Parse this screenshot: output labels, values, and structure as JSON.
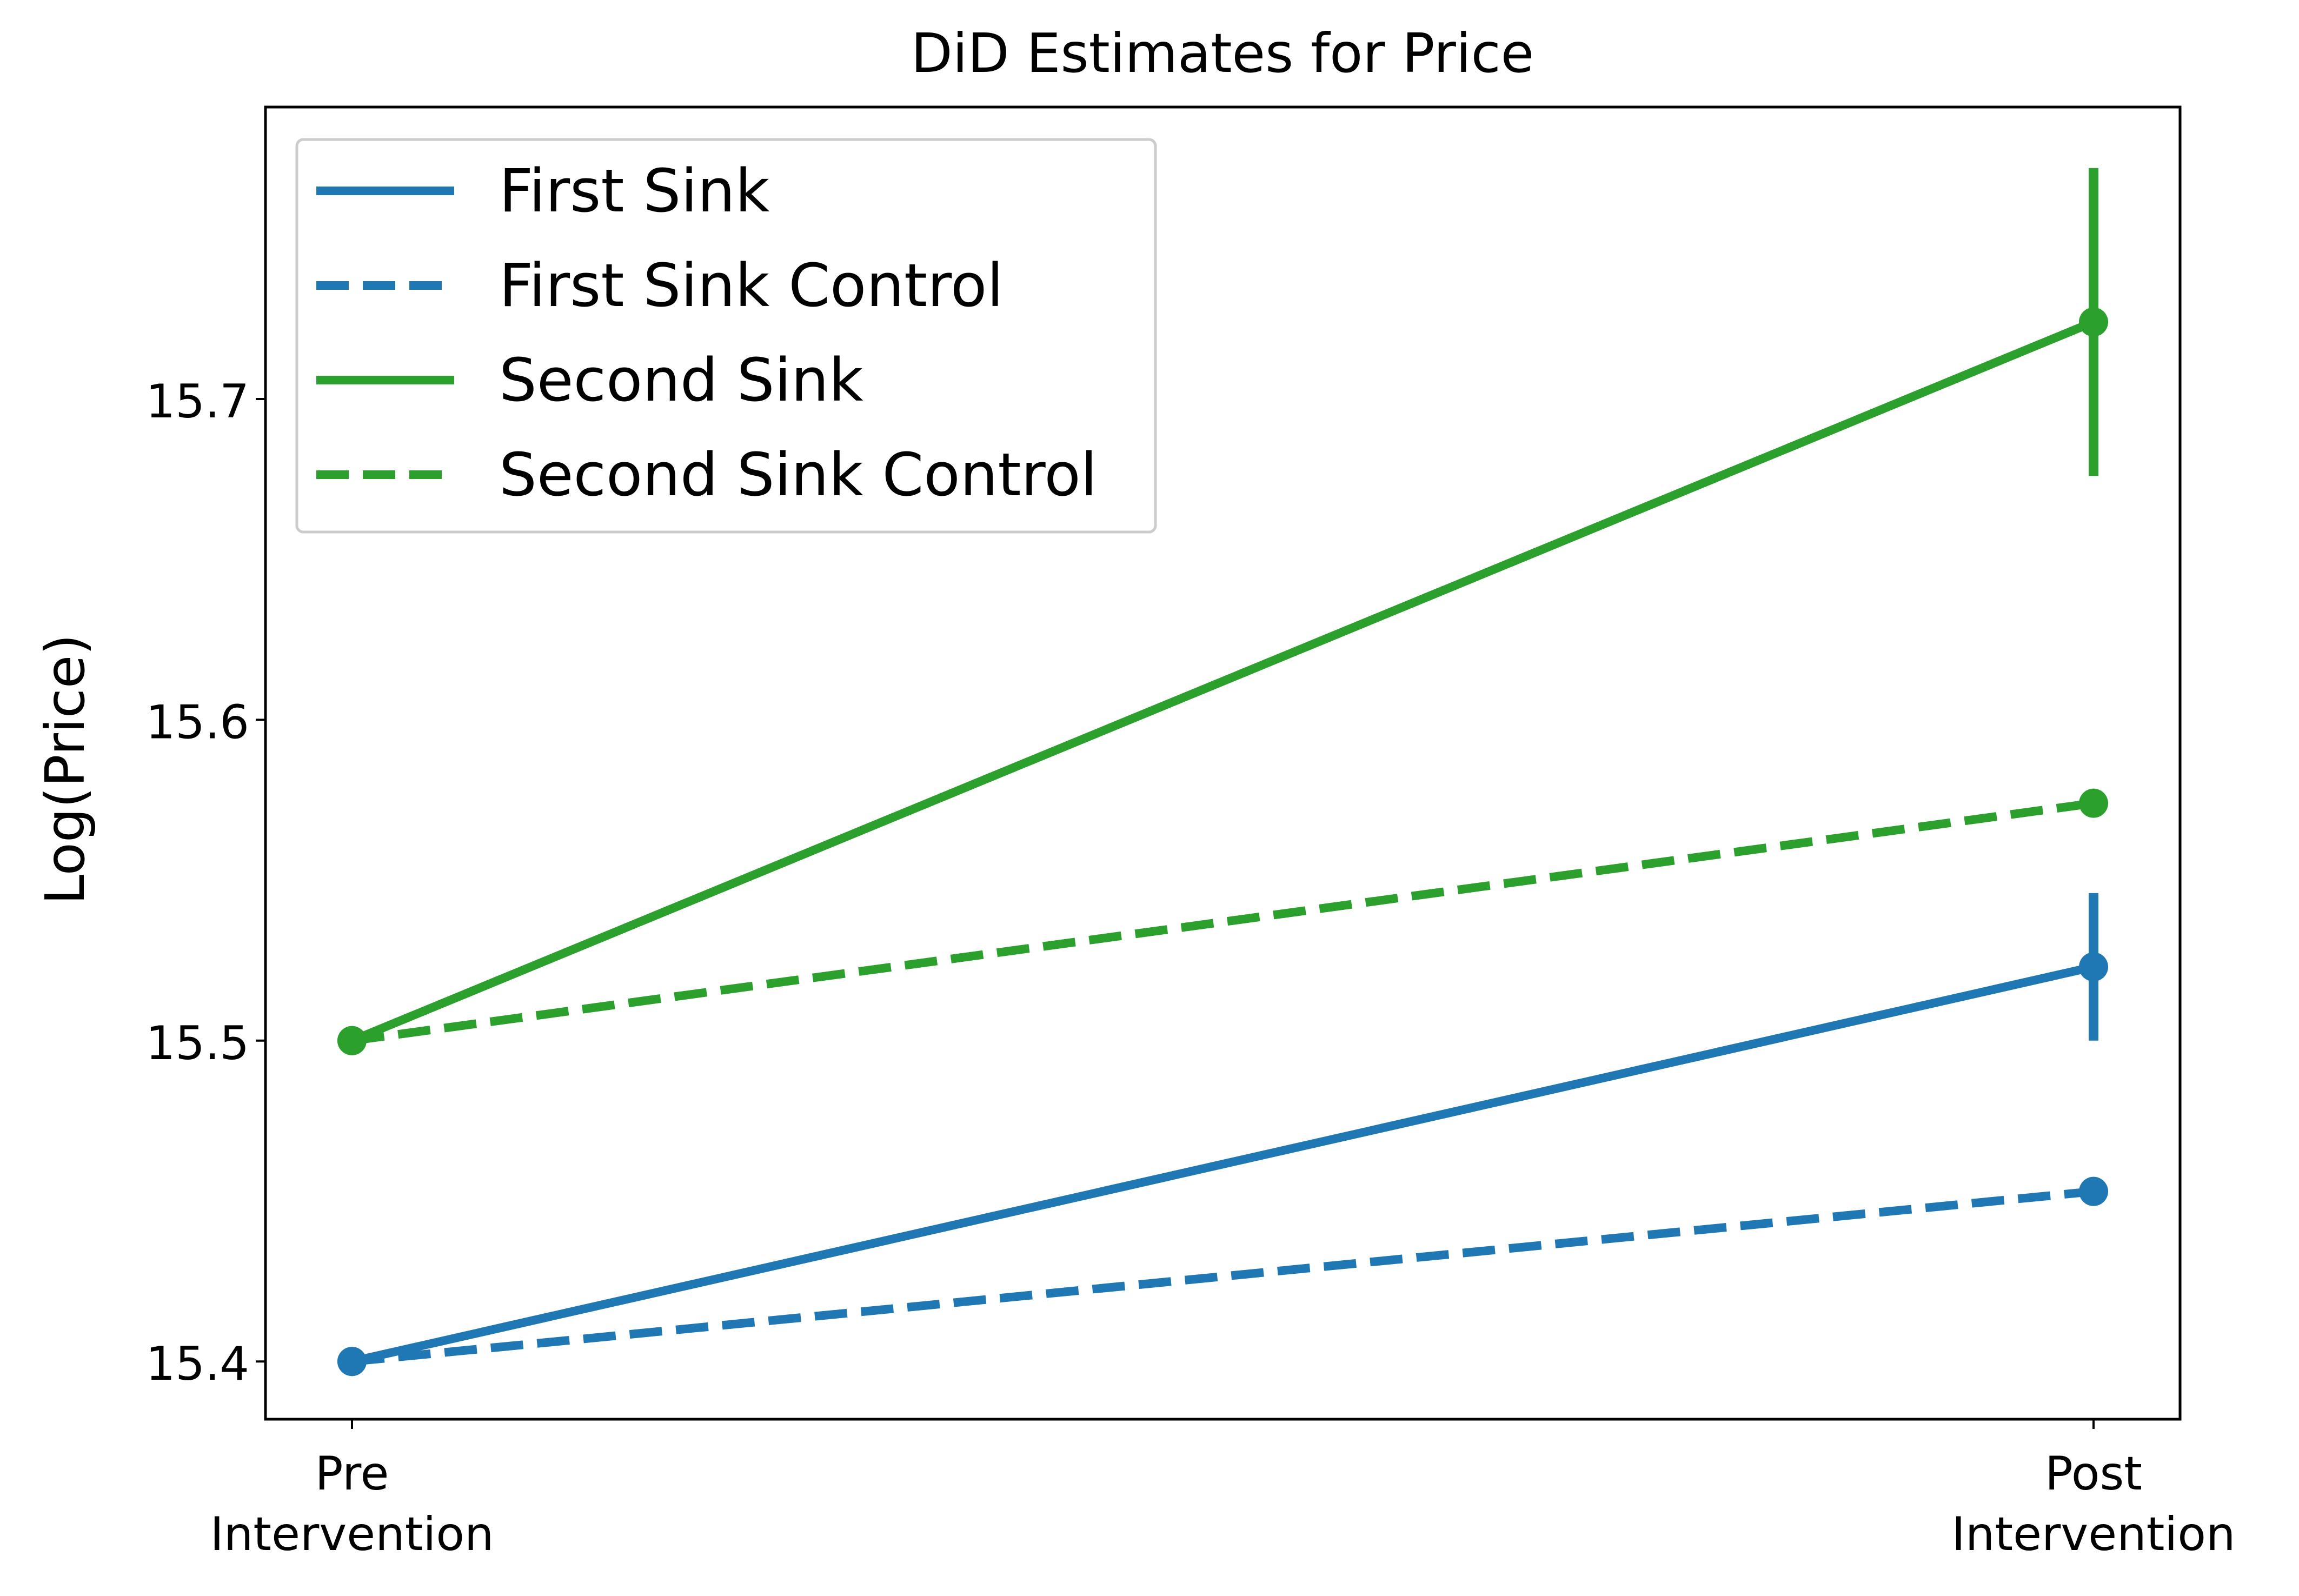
{
  "chart_data": {
    "type": "line",
    "title": "DiD Estimates for Price",
    "xlabel": "",
    "ylabel": "Log(Price)",
    "categories": [
      [
        "Pre",
        "Intervention"
      ],
      [
        "Post",
        "Intervention"
      ]
    ],
    "ylim": [
      15.382,
      15.791
    ],
    "yticks": [
      15.4,
      15.5,
      15.6,
      15.7
    ],
    "ytick_labels": [
      "15.4",
      "15.5",
      "15.6",
      "15.7"
    ],
    "grid": false,
    "legend_position": "top-left",
    "series": [
      {
        "name": "First Sink",
        "style": "solid",
        "color": "#1f77b4",
        "values": [
          15.4,
          15.523
        ],
        "error": [
          null,
          [
            15.5,
            15.546
          ]
        ]
      },
      {
        "name": "First Sink Control",
        "style": "dashed",
        "color": "#1f77b4",
        "values": [
          15.4,
          15.453
        ],
        "error": [
          null,
          null
        ]
      },
      {
        "name": "Second Sink",
        "style": "solid",
        "color": "#2ca02c",
        "values": [
          15.5,
          15.724
        ],
        "error": [
          null,
          [
            15.676,
            15.772
          ]
        ]
      },
      {
        "name": "Second Sink Control",
        "style": "dashed",
        "color": "#2ca02c",
        "values": [
          15.5,
          15.574
        ],
        "error": [
          null,
          null
        ]
      }
    ]
  }
}
